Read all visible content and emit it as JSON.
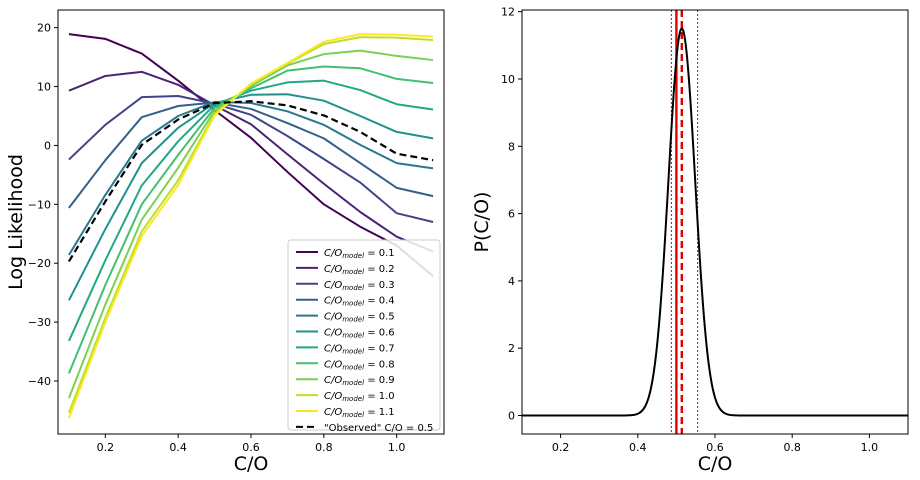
{
  "chart_data": [
    {
      "type": "line",
      "xlabel": "C/O",
      "ylabel": "Log Likelihood",
      "xlim": [
        0.07,
        1.13
      ],
      "ylim": [
        -49,
        23
      ],
      "xticks": [
        0.2,
        0.4,
        0.6,
        0.8,
        1.0
      ],
      "xtick_labels": [
        "0.2",
        "0.4",
        "0.6",
        "0.8",
        "1.0"
      ],
      "yticks": [
        -40,
        -30,
        -20,
        -10,
        0,
        10,
        20
      ],
      "ytick_labels": [
        "−40",
        "−30",
        "−20",
        "−10",
        "0",
        "10",
        "20"
      ],
      "legend_position": "lower-right",
      "x": [
        0.1,
        0.2,
        0.3,
        0.4,
        0.5,
        0.6,
        0.7,
        0.8,
        0.9,
        1.0,
        1.1
      ],
      "series": [
        {
          "name_main": "C/O",
          "name_sub": "model",
          "name_tail": " = 0.1",
          "color": "#440154",
          "values": [
            18.9,
            18.1,
            15.6,
            11.0,
            6.0,
            1.3,
            -4.5,
            -10.0,
            -13.8,
            -17.0,
            -22.2
          ]
        },
        {
          "name_main": "C/O",
          "name_sub": "model",
          "name_tail": " = 0.2",
          "color": "#482475",
          "values": [
            9.3,
            11.8,
            12.5,
            10.3,
            6.8,
            3.6,
            -1.5,
            -6.5,
            -11.3,
            -15.5,
            -18.0
          ]
        },
        {
          "name_main": "C/O",
          "name_sub": "model",
          "name_tail": " = 0.3",
          "color": "#414487",
          "values": [
            -2.4,
            3.5,
            8.2,
            8.4,
            7.1,
            5.2,
            1.6,
            -2.3,
            -6.3,
            -11.5,
            -13.0
          ]
        },
        {
          "name_main": "C/O",
          "name_sub": "model",
          "name_tail": " = 0.4",
          "color": "#355f8d",
          "values": [
            -10.6,
            -2.5,
            4.8,
            6.7,
            7.3,
            6.2,
            3.8,
            1.2,
            -3.0,
            -7.2,
            -8.6
          ]
        },
        {
          "name_main": "C/O",
          "name_sub": "model",
          "name_tail": " = 0.5",
          "color": "#2a788e",
          "values": [
            -18.6,
            -8.4,
            0.8,
            5.0,
            7.4,
            7.2,
            5.8,
            3.5,
            0.1,
            -3.0,
            -3.9
          ]
        },
        {
          "name_main": "C/O",
          "name_sub": "model",
          "name_tail": " = 0.6",
          "color": "#21918c",
          "values": [
            -26.3,
            -14.2,
            -3.0,
            3.0,
            7.2,
            8.6,
            8.7,
            7.6,
            5.0,
            2.3,
            1.2
          ]
        },
        {
          "name_main": "C/O",
          "name_sub": "model",
          "name_tail": " = 0.7",
          "color": "#22a884",
          "values": [
            -33.2,
            -19.5,
            -6.8,
            0.7,
            6.9,
            9.3,
            10.7,
            11.0,
            9.4,
            7.0,
            6.1
          ]
        },
        {
          "name_main": "C/O",
          "name_sub": "model",
          "name_tail": " = 0.8",
          "color": "#44bf70",
          "values": [
            -38.7,
            -23.7,
            -10.0,
            -1.6,
            6.4,
            9.7,
            12.7,
            13.4,
            13.1,
            11.3,
            10.6
          ]
        },
        {
          "name_main": "C/O",
          "name_sub": "model",
          "name_tail": " = 0.9",
          "color": "#7ad151",
          "values": [
            -42.9,
            -27.0,
            -12.6,
            -3.8,
            5.9,
            10.1,
            13.6,
            15.5,
            16.1,
            15.2,
            14.5
          ]
        },
        {
          "name_main": "C/O",
          "name_sub": "model",
          "name_tail": " = 1.0",
          "color": "#bddf26",
          "values": [
            -45.4,
            -29.3,
            -14.6,
            -5.9,
            5.4,
            10.4,
            13.9,
            17.2,
            18.4,
            18.3,
            17.9
          ]
        },
        {
          "name_main": "C/O",
          "name_sub": "model",
          "name_tail": " = 1.1",
          "color": "#fde725",
          "values": [
            -46.3,
            -30.0,
            -15.4,
            -6.7,
            5.1,
            10.5,
            14.0,
            17.6,
            18.9,
            18.8,
            18.5
          ]
        },
        {
          "name_main": "\"Observed\" C/O = 0.5",
          "name_sub": "",
          "name_tail": "",
          "color": "#000000",
          "dashed": true,
          "values": [
            -19.7,
            -9.5,
            0.1,
            4.4,
            7.2,
            7.5,
            6.8,
            5.1,
            2.3,
            -1.4,
            -2.5
          ]
        }
      ]
    },
    {
      "type": "line",
      "xlabel": "C/O",
      "ylabel": "P(C/O)",
      "xlim": [
        0.1,
        1.1
      ],
      "ylim": [
        -0.55,
        12.05
      ],
      "xticks": [
        0.2,
        0.4,
        0.6,
        0.8,
        1.0
      ],
      "xtick_labels": [
        "0.2",
        "0.4",
        "0.6",
        "0.8",
        "1.0"
      ],
      "yticks": [
        0,
        2,
        4,
        6,
        8,
        10,
        12
      ],
      "ytick_labels": [
        "0",
        "2",
        "4",
        "6",
        "8",
        "10",
        "12"
      ],
      "gaussian": {
        "mean": 0.514,
        "sigma": 0.0347,
        "peak": 11.5
      },
      "vlines": [
        {
          "x": 0.487,
          "color": "#e00000",
          "style": "dotted",
          "width": 1
        },
        {
          "x": 0.5,
          "color": "#e00000",
          "style": "solid",
          "width": 2.4
        },
        {
          "x": 0.514,
          "color": "#e00000",
          "style": "dashed",
          "width": 2.4
        },
        {
          "x": 0.555,
          "color": "#e00000",
          "style": "dotted",
          "width": 1
        }
      ]
    }
  ]
}
